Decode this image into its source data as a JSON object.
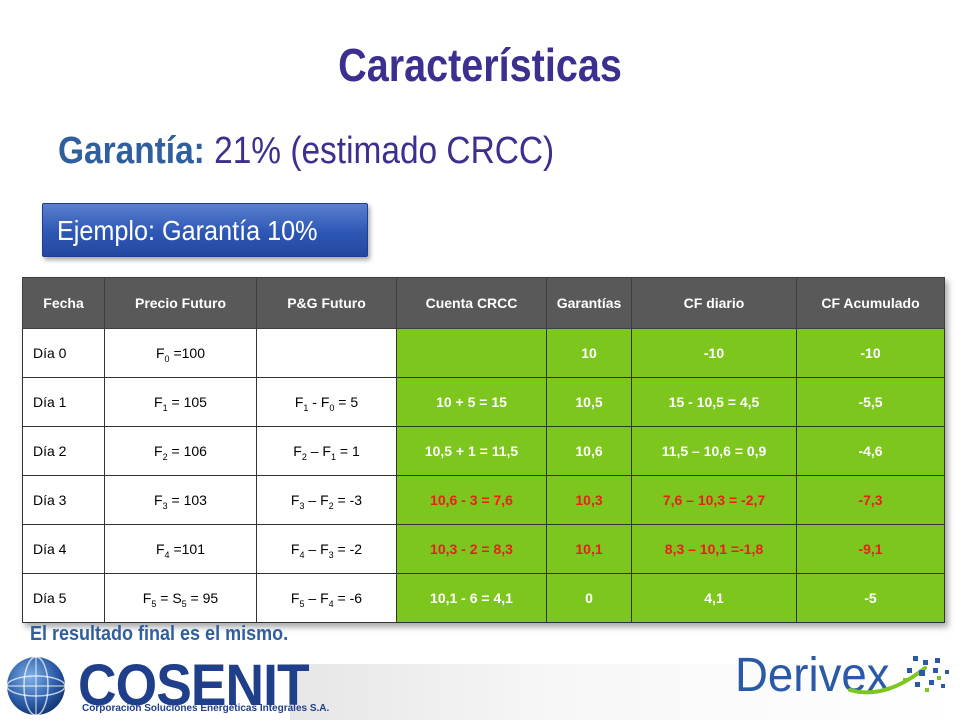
{
  "title": "Características",
  "guarantee": {
    "label": "Garantía:",
    "value": "21% (estimado CRCC)"
  },
  "example": "Ejemplo: Garantía 10%",
  "table": {
    "headers": [
      "Fecha",
      "Precio Futuro",
      "P&G Futuro",
      "Cuenta CRCC",
      "Garantías",
      "CF diario",
      "CF Acumulado"
    ],
    "rows": [
      {
        "fecha": "Día 0",
        "precio": {
          "pre": "F",
          "sub": "0",
          "post": " =100"
        },
        "pyg": null,
        "cuenta": "",
        "garantias": "10",
        "cf_diario": "-10",
        "cf_acum": "-10",
        "red": false
      },
      {
        "fecha": "Día 1",
        "precio": {
          "pre": "F",
          "sub": "1",
          "post": " = 105"
        },
        "pyg": {
          "a": "F",
          "as": "1",
          "op": " - ",
          "b": "F",
          "bs": "0",
          "post": " = 5"
        },
        "cuenta": "10 + 5 = 15",
        "garantias": "10,5",
        "cf_diario": "15 - 10,5 = 4,5",
        "cf_acum": "-5,5",
        "red": false
      },
      {
        "fecha": "Día 2",
        "precio": {
          "pre": "F",
          "sub": "2",
          "post": " = 106"
        },
        "pyg": {
          "a": "F",
          "as": "2",
          "op": " – ",
          "b": "F",
          "bs": "1",
          "post": " = 1"
        },
        "cuenta": "10,5 + 1 = 11,5",
        "garantias": "10,6",
        "cf_diario": "11,5 – 10,6 = 0,9",
        "cf_acum": "-4,6",
        "red": false
      },
      {
        "fecha": "Día 3",
        "precio": {
          "pre": "F",
          "sub": "3",
          "post": " = 103"
        },
        "pyg": {
          "a": "F",
          "as": "3",
          "op": " – ",
          "b": "F",
          "bs": "2",
          "post": " = -3"
        },
        "cuenta": "10,6 - 3 = 7,6",
        "garantias": "10,3",
        "cf_diario": "7,6 – 10,3 = -2,7",
        "cf_acum": "-7,3",
        "red": true
      },
      {
        "fecha": "Día 4",
        "precio": {
          "pre": "F",
          "sub": "4",
          "post": " =101"
        },
        "pyg": {
          "a": "F",
          "as": "4",
          "op": " – ",
          "b": "F",
          "bs": "3",
          "post": " = -2"
        },
        "cuenta": "10,3 - 2 = 8,3",
        "garantias": "10,1",
        "cf_diario": "8,3 – 10,1 =-1,8",
        "cf_acum": "-9,1",
        "red": true
      },
      {
        "fecha": "Día 5",
        "precio": {
          "pre": "F",
          "sub": "5",
          "post": " = S",
          "sub2": "5",
          "post2": " = 95"
        },
        "pyg": {
          "a": "F",
          "as": "5",
          "op": " – ",
          "b": "F",
          "bs": "4",
          "post": " = -6"
        },
        "cuenta": "10,1 - 6 = 4,1",
        "garantias": "0",
        "cf_diario": "4,1",
        "cf_acum": "-5",
        "red": false
      }
    ]
  },
  "result_note": "El resultado final es el mismo.",
  "footer": {
    "cosenit_name": "COSENIT",
    "cosenit_tagline": "Corporación Soluciones Energéticas Integrales S.A.",
    "derivex_name": "Derivex"
  },
  "colors": {
    "title": "#3b2f8f",
    "header_bg": "#595959",
    "green": "#7dc61e",
    "red_text": "#e8201b",
    "example_bg": "#2d57b5"
  }
}
